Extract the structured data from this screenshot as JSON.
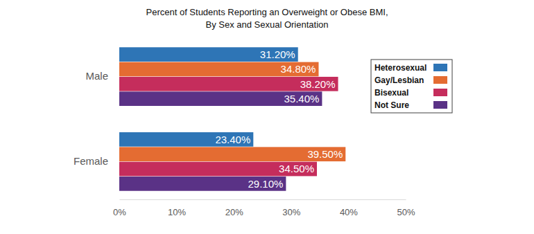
{
  "chart_data": {
    "type": "bar",
    "orientation": "horizontal",
    "title": "Percent of Students Reporting an Overweight or Obese BMI,",
    "subtitle": "By Sex and Sexual Orientation",
    "categories": [
      "Male",
      "Female"
    ],
    "series": [
      {
        "name": "Heterosexual",
        "color": "#2e75b6",
        "values": [
          31.2,
          23.4
        ],
        "value_labels": [
          "31.20%",
          "23.40%"
        ]
      },
      {
        "name": "Gay/Lesbian",
        "color": "#e46c32",
        "values": [
          34.8,
          39.5
        ],
        "value_labels": [
          "34.80%",
          "39.50%"
        ]
      },
      {
        "name": "Bisexual",
        "color": "#c52d5c",
        "values": [
          38.2,
          34.5
        ],
        "value_labels": [
          "38.20%",
          "34.50%"
        ]
      },
      {
        "name": "Not Sure",
        "color": "#5a3286",
        "values": [
          35.4,
          29.1
        ],
        "value_labels": [
          "35.40%",
          "29.10%"
        ]
      }
    ],
    "xlim": [
      0,
      50
    ],
    "xticks": [
      {
        "value": 0,
        "label": "0%"
      },
      {
        "value": 10,
        "label": "10%"
      },
      {
        "value": 20,
        "label": "20%"
      },
      {
        "value": 30,
        "label": "30%"
      },
      {
        "value": 40,
        "label": "40%"
      },
      {
        "value": 50,
        "label": "50%"
      }
    ],
    "grid": false,
    "legend": "top-right",
    "data_labels": true
  }
}
